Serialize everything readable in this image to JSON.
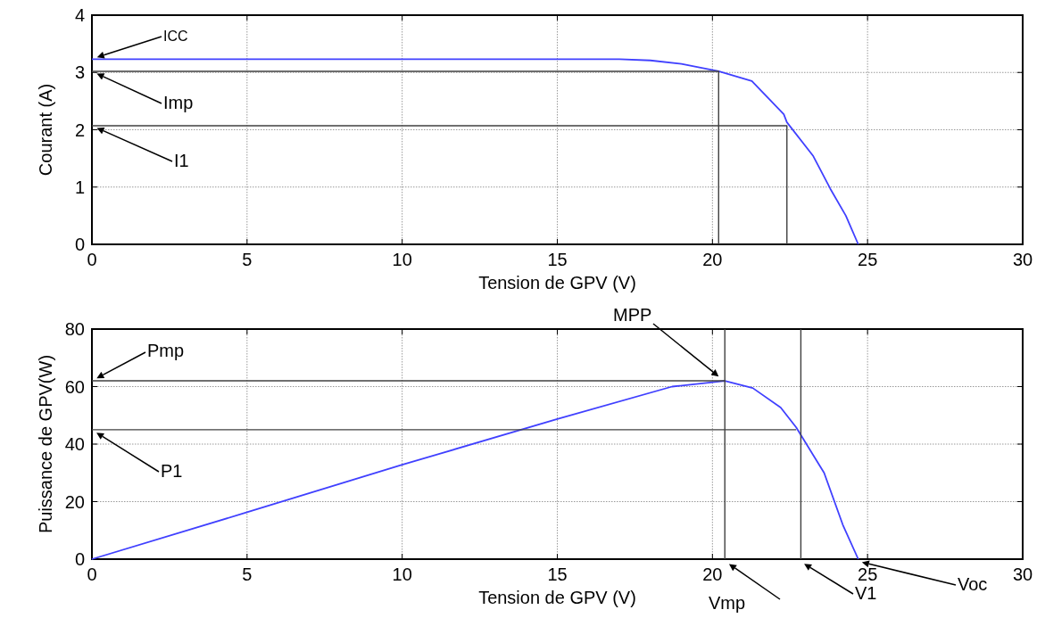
{
  "chart_data": [
    {
      "type": "line",
      "xlabel": "Tension de GPV (V)",
      "ylabel": "Courant (A)",
      "xlim": [
        0,
        30
      ],
      "ylim": [
        0,
        4
      ],
      "xticks": [
        0,
        5,
        10,
        15,
        20,
        25,
        30
      ],
      "yticks": [
        0,
        1,
        2,
        3,
        4
      ],
      "grid": true,
      "marker": "none",
      "line_style": "solid",
      "series": [
        {
          "color": "#4040ff",
          "x": [
            0,
            5,
            10,
            15,
            17,
            18,
            19,
            20.2,
            21.27,
            22.3,
            22.4,
            23.25,
            23.8,
            24.3,
            24.7
          ],
          "values": [
            3.23,
            3.23,
            3.23,
            3.23,
            3.23,
            3.21,
            3.15,
            3.02,
            2.85,
            2.27,
            2.13,
            1.54,
            0.97,
            0.5,
            0
          ]
        },
        {
          "color": "#404040",
          "x": [
            0,
            20.2,
            20.2
          ],
          "values": [
            3.02,
            3.02,
            0
          ]
        },
        {
          "color": "#404040",
          "x": [
            0,
            22.4,
            22.4
          ],
          "values": [
            2.07,
            2.07,
            0
          ]
        }
      ],
      "annotations": [
        "ICC",
        "Imp",
        "I1"
      ]
    },
    {
      "type": "line",
      "xlabel": "Tension de GPV (V)",
      "ylabel": "Puissance de GPV(W)",
      "xlim": [
        0,
        30
      ],
      "ylim": [
        0,
        80
      ],
      "xticks": [
        0,
        5,
        10,
        15,
        20,
        25,
        30
      ],
      "yticks": [
        0,
        20,
        40,
        60,
        80
      ],
      "grid": true,
      "marker": "none",
      "line_style": "solid",
      "series": [
        {
          "color": "#4040ff",
          "x": [
            0,
            5,
            10,
            15,
            18.7,
            20.4,
            21.3,
            22.2,
            22.7,
            23.6,
            24.2,
            24.7
          ],
          "values": [
            0,
            16.3,
            32.8,
            48.7,
            60,
            62,
            59.5,
            52.7,
            45.8,
            30,
            12,
            0
          ]
        },
        {
          "color": "#404040",
          "x": [
            0,
            20.4
          ],
          "values": [
            62,
            62
          ]
        },
        {
          "color": "#404040",
          "x": [
            0,
            22.7
          ],
          "values": [
            45,
            45
          ]
        },
        {
          "color": "#404040",
          "x": [
            20.4,
            20.4
          ],
          "values": [
            80,
            0
          ]
        },
        {
          "color": "#404040",
          "x": [
            22.85,
            22.85
          ],
          "values": [
            80,
            0
          ]
        }
      ],
      "annotations": [
        "Pmp",
        "P1",
        "MPP",
        "Vmp",
        "V1",
        "Voc"
      ]
    }
  ]
}
